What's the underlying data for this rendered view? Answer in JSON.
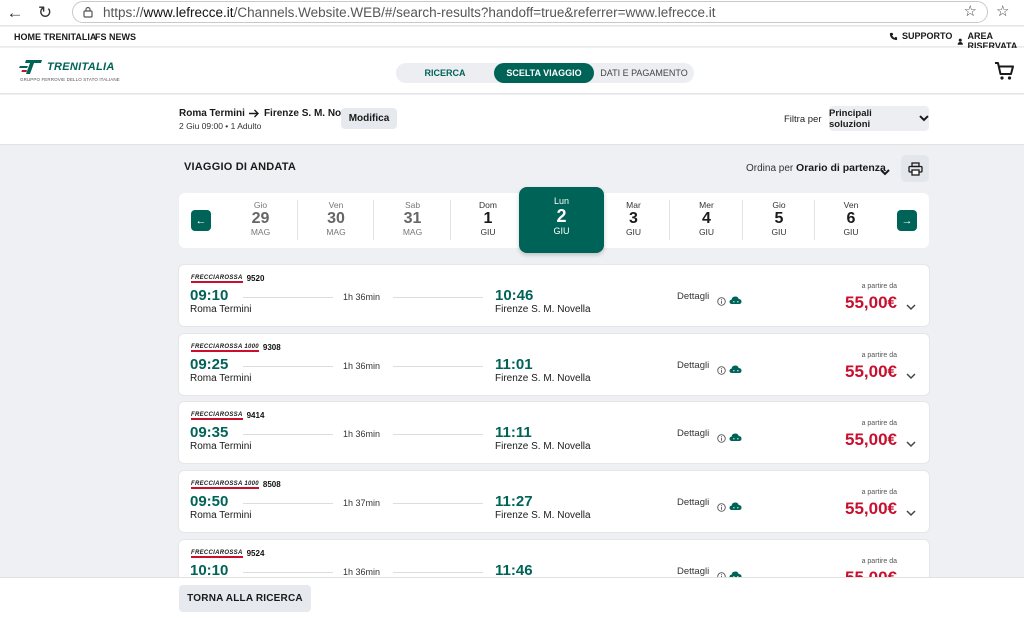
{
  "browser": {
    "url_prefix": "https://",
    "url_domain": "www.lefrecce.it",
    "url_path": "/Channels.Website.WEB/#/search-results?handoff=true&referrer=www.lefrecce.it"
  },
  "top_links": {
    "home": "HOME TRENITALIA",
    "news": "FS NEWS",
    "support": "SUPPORTO",
    "area": "AREA RISERVATA"
  },
  "header": {
    "logo_text": "TRENITALIA",
    "logo_sub": "GRUPPO FERROVIE DELLO STATO ITALIANE",
    "steps": [
      "RICERCA",
      "SCELTA VIAGGIO",
      "DATI E PAGAMENTO"
    ]
  },
  "summary": {
    "from": "Roma Termini",
    "to": "Firenze S. M. Novella",
    "details": "2 Giu 09:00 • 1 Adulto",
    "modify": "Modifica",
    "filter_label": "Filtra per",
    "filter_value": "Principali soluzioni"
  },
  "section": {
    "title": "VIAGGIO DI ANDATA",
    "order_label": "Ordina per",
    "order_value": "Orario di partenza"
  },
  "dates": [
    {
      "dw": "Gio",
      "dn": "29",
      "dm": "MAG",
      "past": true
    },
    {
      "dw": "Ven",
      "dn": "30",
      "dm": "MAG",
      "past": true
    },
    {
      "dw": "Sab",
      "dn": "31",
      "dm": "MAG",
      "past": true
    },
    {
      "dw": "Dom",
      "dn": "1",
      "dm": "GIU",
      "past": false
    },
    {
      "dw": "Lun",
      "dn": "2",
      "dm": "GIU",
      "active": true
    },
    {
      "dw": "Mar",
      "dn": "3",
      "dm": "GIU",
      "past": false
    },
    {
      "dw": "Mer",
      "dn": "4",
      "dm": "GIU",
      "past": false
    },
    {
      "dw": "Gio",
      "dn": "5",
      "dm": "GIU",
      "past": false
    },
    {
      "dw": "Ven",
      "dn": "6",
      "dm": "GIU",
      "past": false
    }
  ],
  "trains": [
    {
      "brand": "FRECCIAROSSA",
      "number": "9520",
      "dep": "09:10",
      "from": "Roma Termini",
      "duration": "1h 36min",
      "arr": "10:46",
      "to": "Firenze S. M. Novella",
      "details": "Dettagli",
      "from_label": "a partire da",
      "price": "55,00€"
    },
    {
      "brand": "FRECCIAROSSA 1000",
      "number": "9308",
      "dep": "09:25",
      "from": "Roma Termini",
      "duration": "1h 36min",
      "arr": "11:01",
      "to": "Firenze S. M. Novella",
      "details": "Dettagli",
      "from_label": "a partire da",
      "price": "55,00€"
    },
    {
      "brand": "FRECCIAROSSA",
      "number": "9414",
      "dep": "09:35",
      "from": "Roma Termini",
      "duration": "1h 36min",
      "arr": "11:11",
      "to": "Firenze S. M. Novella",
      "details": "Dettagli",
      "from_label": "a partire da",
      "price": "55,00€"
    },
    {
      "brand": "FRECCIAROSSA 1000",
      "number": "8508",
      "dep": "09:50",
      "from": "Roma Termini",
      "duration": "1h 37min",
      "arr": "11:27",
      "to": "Firenze S. M. Novella",
      "details": "Dettagli",
      "from_label": "a partire da",
      "price": "55,00€"
    },
    {
      "brand": "FRECCIAROSSA",
      "number": "9524",
      "dep": "10:10",
      "from": "Roma Termini",
      "duration": "1h 36min",
      "arr": "11:46",
      "to": "Firenze S. M. Novella",
      "details": "Dettagli",
      "from_label": "a partire da",
      "price": "55,00€"
    }
  ],
  "bottom": {
    "back": "TORNA ALLA RICERCA"
  },
  "colors": {
    "brand_green": "#006357",
    "price_red": "#c8102e"
  }
}
